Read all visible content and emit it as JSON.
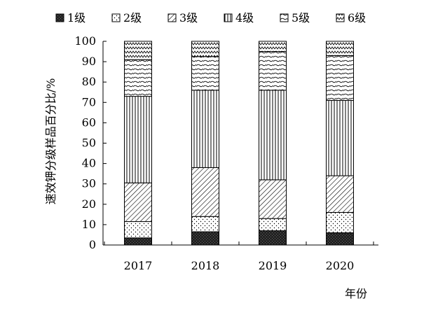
{
  "chart_data": {
    "type": "bar",
    "stacked": true,
    "categories": [
      "2017",
      "2018",
      "2019",
      "2020"
    ],
    "series": [
      {
        "name": "1级",
        "values": [
          3.5,
          6.5,
          7.0,
          6.0
        ],
        "pattern": "dark-solid"
      },
      {
        "name": "2级",
        "values": [
          8.0,
          7.5,
          6.0,
          10.0
        ],
        "pattern": "dots"
      },
      {
        "name": "3级",
        "values": [
          19.0,
          24.0,
          19.0,
          18.0
        ],
        "pattern": "diagonal-down"
      },
      {
        "name": "4级",
        "values": [
          42.5,
          38.0,
          44.0,
          37.0
        ],
        "pattern": "vertical-lines"
      },
      {
        "name": "5级",
        "values": [
          18.0,
          16.5,
          19.0,
          22.0
        ],
        "pattern": "wave-diagonal"
      },
      {
        "name": "6级",
        "values": [
          9.0,
          7.5,
          5.0,
          7.0
        ],
        "pattern": "zigzag"
      }
    ],
    "title": "",
    "xlabel": "年份",
    "ylabel": "速效钾分级样品百分比/%",
    "ylim": [
      0,
      100
    ],
    "yticks": [
      0,
      10,
      20,
      30,
      40,
      50,
      60,
      70,
      80,
      90,
      100
    ],
    "grid": false,
    "legend_position": "top"
  }
}
